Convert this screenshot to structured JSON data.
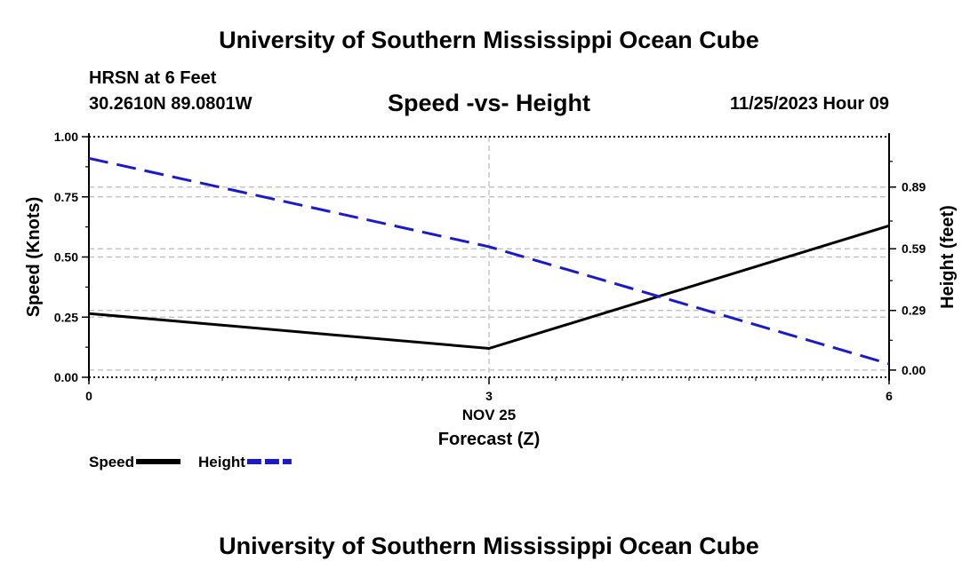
{
  "header": {
    "top_title": "University of Southern Mississippi Ocean Cube",
    "station_name": "HRSN at 6 Feet",
    "coords": "30.2610N  89.0801W",
    "chart_title": "Speed -vs- Height",
    "run_time": "11/25/2023 Hour 09"
  },
  "footer": {
    "bottom_title": "University of Southern Mississippi Ocean Cube"
  },
  "chart_data": {
    "type": "line",
    "title": "Speed -vs- Height",
    "x": [
      0,
      3,
      6
    ],
    "xlim": [
      0,
      6
    ],
    "x_ticks": [
      0,
      3,
      6
    ],
    "x_tick_labels": [
      "0",
      "3",
      "6"
    ],
    "date_label": "NOV 25",
    "xlabel": "Forecast (Z)",
    "left_axis": {
      "label": "Speed (Knots)",
      "lim": [
        0,
        1
      ],
      "ticks": [
        0,
        0.25,
        0.5,
        0.75,
        1.0
      ],
      "tick_labels": [
        "0.00",
        "0.25",
        "0.50",
        "0.75",
        "1.00"
      ]
    },
    "right_axis": {
      "label": "Height (feet)",
      "lim": [
        -0.035,
        1.135
      ],
      "ticks": [
        0.0,
        0.29,
        0.59,
        0.89
      ],
      "tick_labels": [
        "0.00",
        "0.29",
        "0.59",
        "0.89"
      ]
    },
    "series": [
      {
        "name": "Speed",
        "axis": "left",
        "color": "#000000",
        "dashed": false,
        "values": [
          0.265,
          0.12,
          0.63
        ]
      },
      {
        "name": "Height",
        "axis": "right",
        "color": "#1a1acc",
        "dashed": true,
        "values": [
          1.03,
          0.6,
          0.03
        ]
      }
    ],
    "legend": [
      "Speed",
      "Height"
    ]
  }
}
